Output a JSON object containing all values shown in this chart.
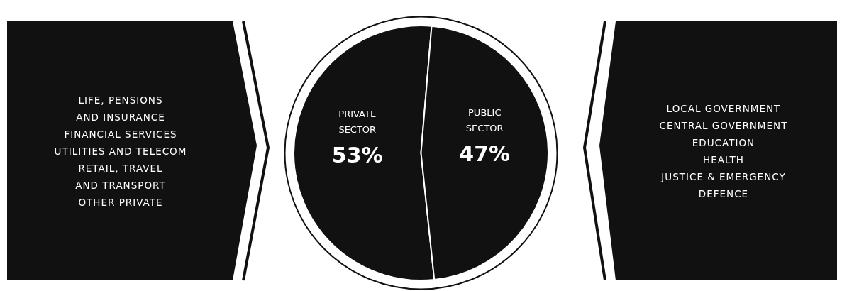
{
  "chart_data": {
    "type": "pie",
    "categories": [
      "PRIVATE SECTOR",
      "PUBLIC SECTOR"
    ],
    "values": [
      53,
      47
    ],
    "value_labels": [
      "53%",
      "47%"
    ],
    "colors": [
      "#111111",
      "#111111"
    ],
    "legend": false,
    "annotations": [
      "LIFE, PENSIONS\nAND INSURANCE\nFINANCIAL SERVICES\nUTILITIES AND TELECOM\nRETAIL, TRAVEL\nAND TRANSPORT\nOTHER PRIVATE",
      "LOCAL GOVERNMENT\nCENTRAL GOVERNMENT\nEDUCATION\nHEALTH\nJUSTICE & EMERGENCY\nDEFENCE"
    ]
  }
}
